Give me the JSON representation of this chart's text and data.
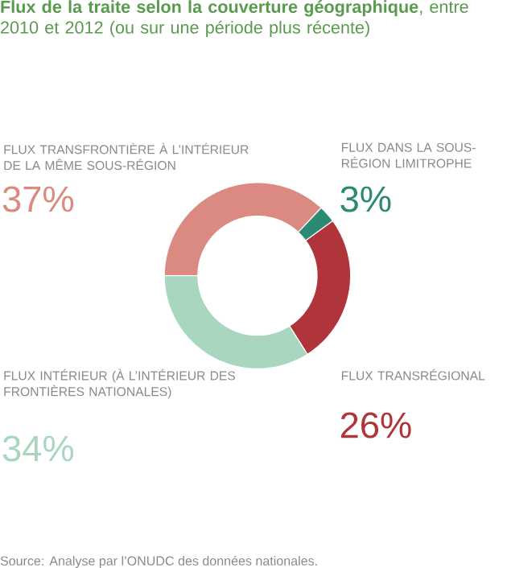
{
  "chart_data": {
    "type": "donut",
    "title": "**Flux de la traite selon la couverture géographique**, entre 2010 et 2012 (ou sur une période plus récente)",
    "categories": [
      "FLUX TRANSFRONTIÈRE À L’INTÉRIEUR DE LA MÊME SOUS-RÉGION",
      "FLUX DANS LA SOUS-RÉGION LIMITROPHE",
      "FLUX TRANSRÉGIONAL",
      "FLUX INTÉRIEUR (À L’INTÉRIEUR DES FRONTIÈRES NATIONALES)"
    ],
    "values": [
      37,
      3,
      26,
      34
    ],
    "colors": [
      "#da8a80",
      "#2a8a72",
      "#b0353a",
      "#a8d6bf"
    ],
    "value_labels": [
      "37%",
      "3%",
      "26%",
      "34%"
    ],
    "annotations": [
      "Source: Analyse par l’ONUDC des données nationales."
    ]
  }
}
